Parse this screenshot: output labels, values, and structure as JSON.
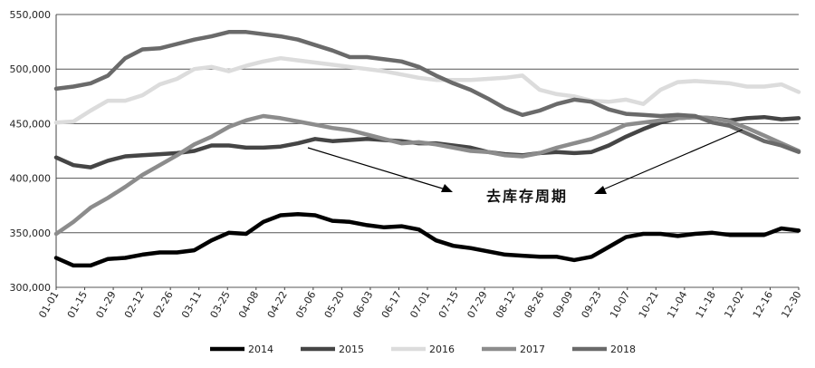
{
  "chart_data": {
    "type": "line",
    "title": "",
    "xlabel": "",
    "ylabel": "",
    "ylim": [
      300000,
      550000
    ],
    "yticks": [
      "300,000",
      "350,000",
      "400,000",
      "450,000",
      "500,000",
      "550,000"
    ],
    "ytick_values": [
      300000,
      350000,
      400000,
      450000,
      500000,
      550000
    ],
    "xticks": [
      "01-01",
      "01-15",
      "01-29",
      "02-12",
      "02-26",
      "03-11",
      "03-25",
      "04-08",
      "04-22",
      "05-06",
      "05-20",
      "06-03",
      "06-17",
      "07-01",
      "07-15",
      "07-29",
      "08-12",
      "08-26",
      "09-09",
      "09-23",
      "10-07",
      "10-21",
      "11-04",
      "11-18",
      "12-02",
      "12-16",
      "12-30"
    ],
    "grid": "horizontal",
    "legend_position": "bottom",
    "annotation": "去库存周期",
    "series": [
      {
        "name": "2014",
        "color": "#000000",
        "values": [
          327000,
          320000,
          320000,
          326000,
          327000,
          330000,
          332000,
          332000,
          334000,
          343000,
          350000,
          349000,
          360000,
          366000,
          367000,
          366000,
          361000,
          360000,
          357000,
          355000,
          356000,
          353000,
          343000,
          338000,
          336000,
          333000,
          330000,
          329000,
          328000,
          328000,
          325000,
          328000,
          337000,
          346000,
          349000,
          349000,
          347000,
          349000,
          350000,
          348000,
          348000,
          348000,
          354000,
          352000
        ]
      },
      {
        "name": "2015",
        "color": "#454545",
        "values": [
          419000,
          412000,
          410000,
          416000,
          420000,
          421000,
          422000,
          423000,
          425000,
          430000,
          430000,
          428000,
          428000,
          429000,
          432000,
          436000,
          434000,
          435000,
          436000,
          435000,
          434000,
          432000,
          432000,
          430000,
          428000,
          424000,
          422000,
          421000,
          423000,
          424000,
          423000,
          424000,
          430000,
          438000,
          445000,
          451000,
          455000,
          456000,
          455000,
          453000,
          455000,
          456000,
          454000,
          455000
        ]
      },
      {
        "name": "2016",
        "color": "#dcdcdc",
        "values": [
          451000,
          452000,
          462000,
          471000,
          471000,
          476000,
          486000,
          491000,
          500000,
          502000,
          498000,
          503000,
          507000,
          510000,
          508000,
          506000,
          504000,
          502000,
          500000,
          498000,
          495000,
          492000,
          490000,
          490000,
          490000,
          491000,
          492000,
          494000,
          481000,
          477000,
          475000,
          471000,
          470000,
          472000,
          468000,
          481000,
          488000,
          489000,
          488000,
          487000,
          484000,
          484000,
          486000,
          479000
        ]
      },
      {
        "name": "2017",
        "color": "#8c8c8c",
        "values": [
          349000,
          360000,
          373000,
          382000,
          392000,
          403000,
          412000,
          421000,
          431000,
          438000,
          447000,
          453000,
          457000,
          455000,
          452000,
          449000,
          446000,
          444000,
          440000,
          436000,
          432000,
          433000,
          431000,
          428000,
          425000,
          424000,
          421000,
          420000,
          423000,
          428000,
          432000,
          436000,
          442000,
          449000,
          451000,
          453000,
          455000,
          456000,
          455000,
          452000,
          446000,
          439000,
          432000,
          425000
        ]
      },
      {
        "name": "2018",
        "color": "#6a6a6a",
        "values": [
          482000,
          484000,
          487000,
          494000,
          510000,
          518000,
          519000,
          523000,
          527000,
          530000,
          534000,
          534000,
          532000,
          530000,
          527000,
          522000,
          517000,
          511000,
          511000,
          509000,
          507000,
          502000,
          494000,
          487000,
          481000,
          473000,
          464000,
          458000,
          462000,
          468000,
          472000,
          470000,
          463000,
          459000,
          458000,
          457000,
          458000,
          457000,
          451000,
          448000,
          441000,
          434000,
          430000,
          424000
        ]
      }
    ]
  }
}
